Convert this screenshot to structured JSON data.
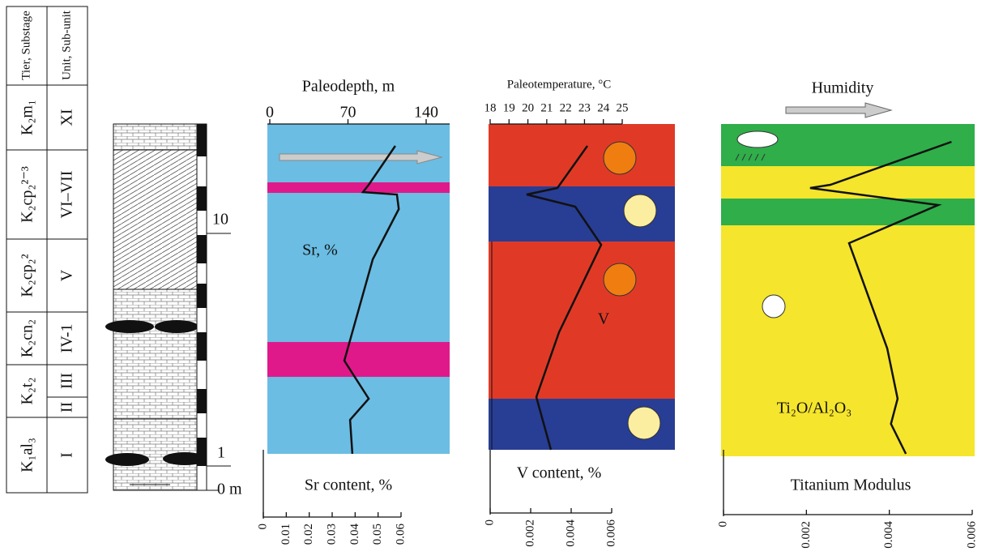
{
  "stratigraphy": {
    "headers": [
      "Tier, Substage",
      "Unit, Sub-unit"
    ],
    "rows": [
      {
        "tier": "K₂m₁",
        "units": [
          "XI"
        ]
      },
      {
        "tier": "K₂cp₂²⁻³",
        "units": [
          "VI–VII"
        ]
      },
      {
        "tier": "K₂cp₂²",
        "units": [
          "V"
        ]
      },
      {
        "tier": "K₂cn₂",
        "units": [
          "IV-1"
        ]
      },
      {
        "tier": "K₂t₂",
        "units": [
          "III",
          "II"
        ]
      },
      {
        "tier": "K₁al₃",
        "units": [
          "I"
        ]
      }
    ],
    "scale": [
      "10",
      "1",
      "0 m"
    ]
  },
  "chart_data": [
    {
      "type": "line",
      "x2_label": "Paleodepth, m",
      "x2lim": [
        0,
        140
      ],
      "x2ticks": [
        0,
        70,
        140
      ],
      "annotation": "Sr, %",
      "x_label": "Sr content, %",
      "xlim": [
        0,
        0.06
      ],
      "xticks": [
        0,
        0.01,
        0.02,
        0.03,
        0.04,
        0.05,
        0.06
      ],
      "color": "#111111",
      "values": [
        0.0575,
        0.0459,
        0.0434,
        0.0582,
        0.059,
        0.0477,
        0.0353,
        0.0459,
        0.0378,
        0.0388
      ]
    },
    {
      "type": "line",
      "x2_label": "Paleotemperature, °C",
      "x2lim": [
        18,
        25
      ],
      "x2ticks": [
        18,
        19,
        20,
        21,
        22,
        23,
        24,
        25
      ],
      "annotation": "V",
      "x_label": "V content, %",
      "xlim": [
        0,
        0.006
      ],
      "xticks": [
        0,
        0.002,
        0.004,
        0.006
      ],
      "color": "#111111",
      "values": [
        0.0048,
        0.00332,
        0.0018,
        0.0042,
        0.00548,
        0.0034,
        0.00228,
        0.003
      ]
    },
    {
      "type": "line",
      "x2_label": "Humidity",
      "annotation": "Ti₂O/Al₂O₃",
      "x_label": "Titanium Modulus",
      "xlim": [
        0,
        0.006
      ],
      "xticks": [
        0,
        0.002,
        0.004,
        0.006
      ],
      "color": "#111111",
      "values": [
        0.0055,
        0.00258,
        0.00209,
        0.00518,
        0.00303,
        0.00395,
        0.0042,
        0.00404,
        0.0044
      ]
    }
  ]
}
